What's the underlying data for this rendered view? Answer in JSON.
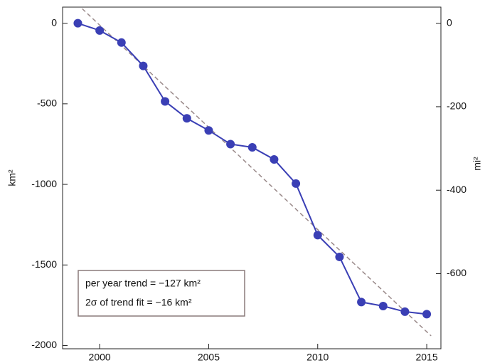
{
  "chart_data": {
    "type": "line",
    "x": [
      1999,
      2000,
      2001,
      2002,
      2003,
      2004,
      2005,
      2006,
      2007,
      2008,
      2009,
      2010,
      2011,
      2012,
      2013,
      2014,
      2015
    ],
    "series": [
      {
        "color": "#3a3fb5",
        "values": [
          0,
          -45,
          -120,
          -265,
          -485,
          -590,
          -665,
          -750,
          -770,
          -845,
          -995,
          -1315,
          -1450,
          -1730,
          -1755,
          -1790,
          -1805
        ]
      }
    ],
    "trend": {
      "x": [
        1999.2,
        2015.2
      ],
      "values": [
        90,
        -1940
      ],
      "color": "#9a8a8a"
    },
    "xlim": [
      1998.3,
      2015.65
    ],
    "xticks": [
      2000,
      2005,
      2010,
      2015
    ],
    "ylim": [
      -2020,
      100
    ],
    "yticks": [
      0,
      -500,
      -1000,
      -1500,
      -2000
    ],
    "y2lim": [
      -779.9,
      38.61
    ],
    "y2ticks": [
      0,
      -200,
      -400,
      -600
    ],
    "ylabel": "km²",
    "y2label": "mi²",
    "annotations": [
      "per year trend = −127 km²",
      "2σ of trend fit = −16 km²"
    ]
  }
}
